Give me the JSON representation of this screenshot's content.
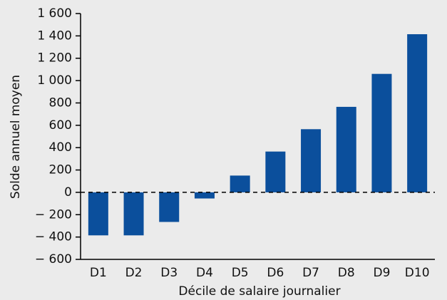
{
  "chart_data": {
    "type": "bar",
    "x_label": "Décile de salaire journalier",
    "y_label": "Solde annuel moyen",
    "categories": [
      "D1",
      "D2",
      "D3",
      "D4",
      "D5",
      "D6",
      "D7",
      "D8",
      "D9",
      "D10"
    ],
    "values": [
      -385,
      -385,
      -265,
      -55,
      150,
      365,
      565,
      765,
      1060,
      1415
    ],
    "color": "#0b4f9c",
    "ylim": [
      -600,
      1600
    ],
    "yticks": [
      {
        "value": -600,
        "label": "− 600"
      },
      {
        "value": -400,
        "label": "− 400"
      },
      {
        "value": -200,
        "label": "− 200"
      },
      0,
      200,
      400,
      600,
      800,
      {
        "value": 1000,
        "label": "1 000"
      },
      {
        "value": 1200,
        "label": "1 200"
      },
      {
        "value": 1400,
        "label": "1 400"
      },
      {
        "value": 1600,
        "label": "1 600"
      }
    ]
  }
}
